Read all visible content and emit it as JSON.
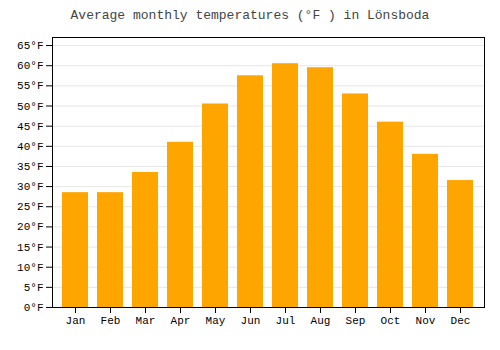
{
  "chart_data": {
    "type": "bar",
    "title": "Average monthly temperatures (°F ) in Lönsboda",
    "categories": [
      "Jan",
      "Feb",
      "Mar",
      "Apr",
      "May",
      "Jun",
      "Jul",
      "Aug",
      "Sep",
      "Oct",
      "Nov",
      "Dec"
    ],
    "values": [
      28.5,
      28.5,
      33.5,
      41.0,
      50.5,
      57.5,
      60.5,
      59.5,
      53.0,
      46.0,
      38.0,
      31.5
    ],
    "color": "#FFA500",
    "ylim": [
      0,
      67
    ],
    "yticks": [
      {
        "value": 0,
        "label": "0°F"
      },
      {
        "value": 5,
        "label": "5°F"
      },
      {
        "value": 10,
        "label": "10°F"
      },
      {
        "value": 15,
        "label": "15°F"
      },
      {
        "value": 20,
        "label": "20°F"
      },
      {
        "value": 25,
        "label": "25°F"
      },
      {
        "value": 30,
        "label": "30°F"
      },
      {
        "value": 35,
        "label": "35°F"
      },
      {
        "value": 40,
        "label": "40°F"
      },
      {
        "value": 45,
        "label": "45°F"
      },
      {
        "value": 50,
        "label": "50°F"
      },
      {
        "value": 55,
        "label": "55°F"
      },
      {
        "value": 60,
        "label": "60°F"
      },
      {
        "value": 65,
        "label": "65°F"
      }
    ],
    "grid": true
  }
}
